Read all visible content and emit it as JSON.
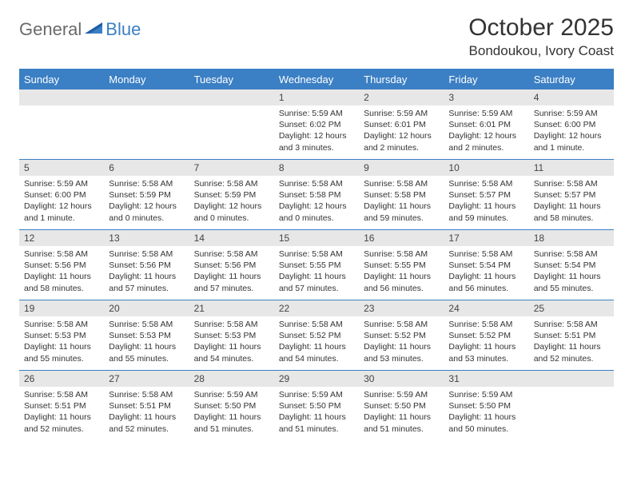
{
  "logo": {
    "general": "General",
    "blue": "Blue"
  },
  "title": "October 2025",
  "location": "Bondoukou, Ivory Coast",
  "colors": {
    "accent": "#3b7fc4",
    "band": "#e7e7e7",
    "text": "#333333"
  },
  "days_of_week": [
    "Sunday",
    "Monday",
    "Tuesday",
    "Wednesday",
    "Thursday",
    "Friday",
    "Saturday"
  ],
  "weeks": [
    [
      {
        "n": "",
        "sunrise": "",
        "sunset": "",
        "daylight": ""
      },
      {
        "n": "",
        "sunrise": "",
        "sunset": "",
        "daylight": ""
      },
      {
        "n": "",
        "sunrise": "",
        "sunset": "",
        "daylight": ""
      },
      {
        "n": "1",
        "sunrise": "Sunrise: 5:59 AM",
        "sunset": "Sunset: 6:02 PM",
        "daylight": "Daylight: 12 hours and 3 minutes."
      },
      {
        "n": "2",
        "sunrise": "Sunrise: 5:59 AM",
        "sunset": "Sunset: 6:01 PM",
        "daylight": "Daylight: 12 hours and 2 minutes."
      },
      {
        "n": "3",
        "sunrise": "Sunrise: 5:59 AM",
        "sunset": "Sunset: 6:01 PM",
        "daylight": "Daylight: 12 hours and 2 minutes."
      },
      {
        "n": "4",
        "sunrise": "Sunrise: 5:59 AM",
        "sunset": "Sunset: 6:00 PM",
        "daylight": "Daylight: 12 hours and 1 minute."
      }
    ],
    [
      {
        "n": "5",
        "sunrise": "Sunrise: 5:59 AM",
        "sunset": "Sunset: 6:00 PM",
        "daylight": "Daylight: 12 hours and 1 minute."
      },
      {
        "n": "6",
        "sunrise": "Sunrise: 5:58 AM",
        "sunset": "Sunset: 5:59 PM",
        "daylight": "Daylight: 12 hours and 0 minutes."
      },
      {
        "n": "7",
        "sunrise": "Sunrise: 5:58 AM",
        "sunset": "Sunset: 5:59 PM",
        "daylight": "Daylight: 12 hours and 0 minutes."
      },
      {
        "n": "8",
        "sunrise": "Sunrise: 5:58 AM",
        "sunset": "Sunset: 5:58 PM",
        "daylight": "Daylight: 12 hours and 0 minutes."
      },
      {
        "n": "9",
        "sunrise": "Sunrise: 5:58 AM",
        "sunset": "Sunset: 5:58 PM",
        "daylight": "Daylight: 11 hours and 59 minutes."
      },
      {
        "n": "10",
        "sunrise": "Sunrise: 5:58 AM",
        "sunset": "Sunset: 5:57 PM",
        "daylight": "Daylight: 11 hours and 59 minutes."
      },
      {
        "n": "11",
        "sunrise": "Sunrise: 5:58 AM",
        "sunset": "Sunset: 5:57 PM",
        "daylight": "Daylight: 11 hours and 58 minutes."
      }
    ],
    [
      {
        "n": "12",
        "sunrise": "Sunrise: 5:58 AM",
        "sunset": "Sunset: 5:56 PM",
        "daylight": "Daylight: 11 hours and 58 minutes."
      },
      {
        "n": "13",
        "sunrise": "Sunrise: 5:58 AM",
        "sunset": "Sunset: 5:56 PM",
        "daylight": "Daylight: 11 hours and 57 minutes."
      },
      {
        "n": "14",
        "sunrise": "Sunrise: 5:58 AM",
        "sunset": "Sunset: 5:56 PM",
        "daylight": "Daylight: 11 hours and 57 minutes."
      },
      {
        "n": "15",
        "sunrise": "Sunrise: 5:58 AM",
        "sunset": "Sunset: 5:55 PM",
        "daylight": "Daylight: 11 hours and 57 minutes."
      },
      {
        "n": "16",
        "sunrise": "Sunrise: 5:58 AM",
        "sunset": "Sunset: 5:55 PM",
        "daylight": "Daylight: 11 hours and 56 minutes."
      },
      {
        "n": "17",
        "sunrise": "Sunrise: 5:58 AM",
        "sunset": "Sunset: 5:54 PM",
        "daylight": "Daylight: 11 hours and 56 minutes."
      },
      {
        "n": "18",
        "sunrise": "Sunrise: 5:58 AM",
        "sunset": "Sunset: 5:54 PM",
        "daylight": "Daylight: 11 hours and 55 minutes."
      }
    ],
    [
      {
        "n": "19",
        "sunrise": "Sunrise: 5:58 AM",
        "sunset": "Sunset: 5:53 PM",
        "daylight": "Daylight: 11 hours and 55 minutes."
      },
      {
        "n": "20",
        "sunrise": "Sunrise: 5:58 AM",
        "sunset": "Sunset: 5:53 PM",
        "daylight": "Daylight: 11 hours and 55 minutes."
      },
      {
        "n": "21",
        "sunrise": "Sunrise: 5:58 AM",
        "sunset": "Sunset: 5:53 PM",
        "daylight": "Daylight: 11 hours and 54 minutes."
      },
      {
        "n": "22",
        "sunrise": "Sunrise: 5:58 AM",
        "sunset": "Sunset: 5:52 PM",
        "daylight": "Daylight: 11 hours and 54 minutes."
      },
      {
        "n": "23",
        "sunrise": "Sunrise: 5:58 AM",
        "sunset": "Sunset: 5:52 PM",
        "daylight": "Daylight: 11 hours and 53 minutes."
      },
      {
        "n": "24",
        "sunrise": "Sunrise: 5:58 AM",
        "sunset": "Sunset: 5:52 PM",
        "daylight": "Daylight: 11 hours and 53 minutes."
      },
      {
        "n": "25",
        "sunrise": "Sunrise: 5:58 AM",
        "sunset": "Sunset: 5:51 PM",
        "daylight": "Daylight: 11 hours and 52 minutes."
      }
    ],
    [
      {
        "n": "26",
        "sunrise": "Sunrise: 5:58 AM",
        "sunset": "Sunset: 5:51 PM",
        "daylight": "Daylight: 11 hours and 52 minutes."
      },
      {
        "n": "27",
        "sunrise": "Sunrise: 5:58 AM",
        "sunset": "Sunset: 5:51 PM",
        "daylight": "Daylight: 11 hours and 52 minutes."
      },
      {
        "n": "28",
        "sunrise": "Sunrise: 5:59 AM",
        "sunset": "Sunset: 5:50 PM",
        "daylight": "Daylight: 11 hours and 51 minutes."
      },
      {
        "n": "29",
        "sunrise": "Sunrise: 5:59 AM",
        "sunset": "Sunset: 5:50 PM",
        "daylight": "Daylight: 11 hours and 51 minutes."
      },
      {
        "n": "30",
        "sunrise": "Sunrise: 5:59 AM",
        "sunset": "Sunset: 5:50 PM",
        "daylight": "Daylight: 11 hours and 51 minutes."
      },
      {
        "n": "31",
        "sunrise": "Sunrise: 5:59 AM",
        "sunset": "Sunset: 5:50 PM",
        "daylight": "Daylight: 11 hours and 50 minutes."
      },
      {
        "n": "",
        "sunrise": "",
        "sunset": "",
        "daylight": ""
      }
    ]
  ]
}
